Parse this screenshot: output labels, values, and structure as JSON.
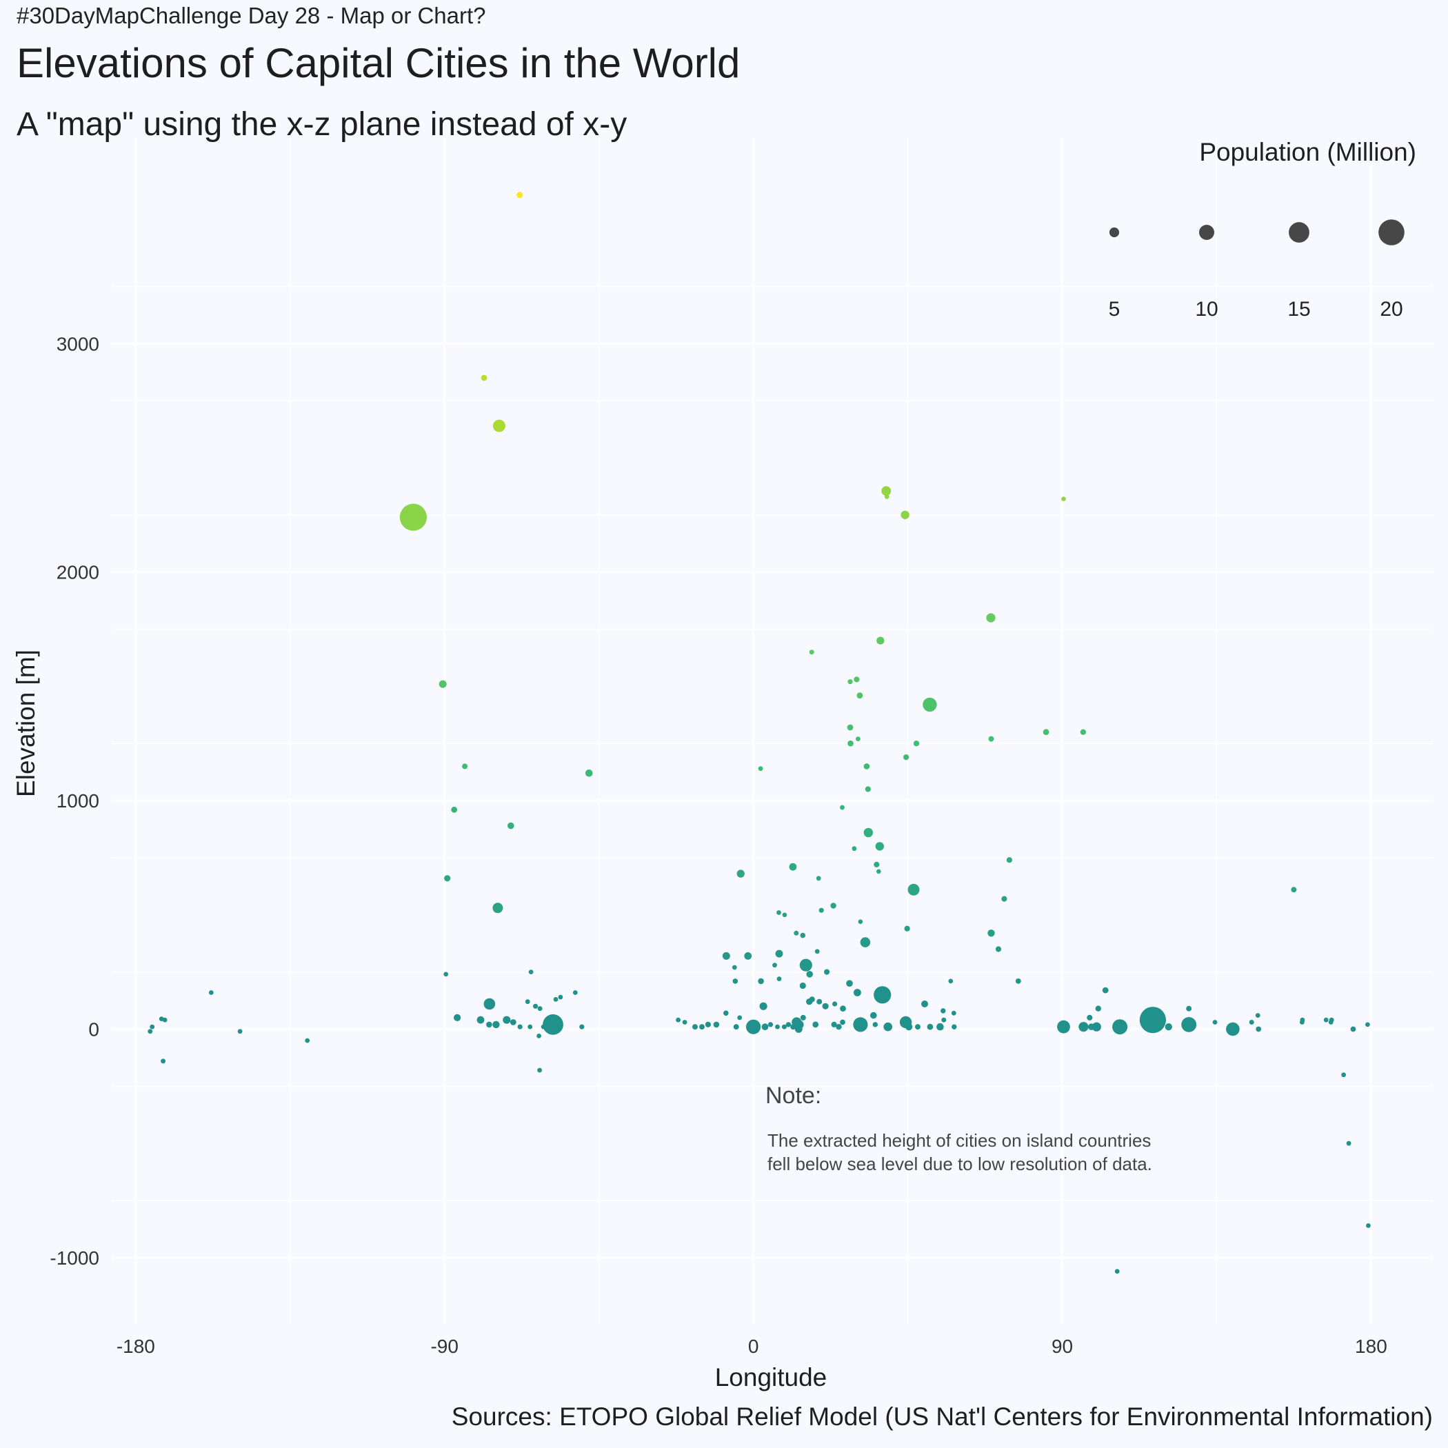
{
  "header": {
    "eyebrow": "#30DayMapChallenge Day 28 - Map or Chart?",
    "title": "Elevations of Capital Cities in the World",
    "subtitle": "A \"map\" using the x-z plane instead of x-y"
  },
  "caption": "Sources: ETOPO Global Relief Model (US Nat'l Centers for Environmental Information)",
  "note": {
    "title": "Note:",
    "lines": [
      "The extracted height of cities on island countries",
      "fell below sea level due to low resolution of data."
    ]
  },
  "chart_data": {
    "type": "scatter",
    "title": "Elevations of Capital Cities in the World",
    "xlabel": "Longitude",
    "ylabel": "Elevation [m]",
    "xlim": [
      -187,
      198
    ],
    "ylim": [
      -1290,
      3900
    ],
    "x_ticks": [
      -180,
      -90,
      0,
      90,
      180
    ],
    "x_tick_labels": [
      "-180",
      "-90",
      "0",
      "90",
      "180"
    ],
    "y_ticks": [
      -1000,
      0,
      1000,
      2000,
      3000
    ],
    "y_tick_labels": [
      "-1000",
      "0",
      "1000",
      "2000",
      "3000"
    ],
    "grid": true,
    "size_legend": {
      "title": "Population (Million)",
      "placement": "top-right",
      "breaks": [
        5,
        10,
        15,
        20
      ],
      "labels": [
        "5",
        "10",
        "15",
        "20"
      ],
      "color": "#474747"
    },
    "color_scale": "viridis (by elevation)",
    "points": [
      {
        "x": -68.1,
        "y": 3650,
        "pop": 1.8
      },
      {
        "x": -78.5,
        "y": 2850,
        "pop": 1.6
      },
      {
        "x": -74.1,
        "y": 2640,
        "pop": 7.4
      },
      {
        "x": -99.1,
        "y": 2240,
        "pop": 21.0
      },
      {
        "x": 90.4,
        "y": 2320,
        "pop": 0.1
      },
      {
        "x": 38.7,
        "y": 2355,
        "pop": 4.8
      },
      {
        "x": 38.9,
        "y": 2330,
        "pop": 0.3
      },
      {
        "x": 44.2,
        "y": 2250,
        "pop": 3.9
      },
      {
        "x": 69.2,
        "y": 1800,
        "pop": 4.3
      },
      {
        "x": 17.0,
        "y": 1650,
        "pop": 0.4
      },
      {
        "x": 37.0,
        "y": 1700,
        "pop": 3.1
      },
      {
        "x": 28.2,
        "y": 1520,
        "pop": 0.5
      },
      {
        "x": 30.1,
        "y": 1530,
        "pop": 1.2
      },
      {
        "x": 31.0,
        "y": 1460,
        "pop": 1.6
      },
      {
        "x": 51.4,
        "y": 1420,
        "pop": 9.0
      },
      {
        "x": -90.5,
        "y": 1510,
        "pop": 2.9
      },
      {
        "x": 28.2,
        "y": 1320,
        "pop": 1.5
      },
      {
        "x": 28.3,
        "y": 1250,
        "pop": 1.4
      },
      {
        "x": 30.5,
        "y": 1270,
        "pop": 0.2
      },
      {
        "x": 47.5,
        "y": 1250,
        "pop": 1.3
      },
      {
        "x": 44.5,
        "y": 1190,
        "pop": 1.1
      },
      {
        "x": 69.3,
        "y": 1270,
        "pop": 1.0
      },
      {
        "x": 85.3,
        "y": 1300,
        "pop": 1.5
      },
      {
        "x": 33.0,
        "y": 1150,
        "pop": 1.4
      },
      {
        "x": 96.1,
        "y": 1300,
        "pop": 1.3
      },
      {
        "x": -84.1,
        "y": 1150,
        "pop": 1.0
      },
      {
        "x": -47.9,
        "y": 1120,
        "pop": 2.7
      },
      {
        "x": 2.1,
        "y": 1140,
        "pop": 0.2
      },
      {
        "x": 33.4,
        "y": 1050,
        "pop": 1.1
      },
      {
        "x": -87.2,
        "y": 960,
        "pop": 1.5
      },
      {
        "x": -70.7,
        "y": 890,
        "pop": 2.0
      },
      {
        "x": 25.9,
        "y": 970,
        "pop": 0.3
      },
      {
        "x": 33.5,
        "y": 860,
        "pop": 4.5
      },
      {
        "x": 36.8,
        "y": 800,
        "pop": 3.9
      },
      {
        "x": 29.4,
        "y": 790,
        "pop": 0.3
      },
      {
        "x": 35.9,
        "y": 720,
        "pop": 1.1
      },
      {
        "x": 36.5,
        "y": 690,
        "pop": 0.1
      },
      {
        "x": 74.6,
        "y": 740,
        "pop": 1.2
      },
      {
        "x": -89.2,
        "y": 660,
        "pop": 1.8
      },
      {
        "x": -3.7,
        "y": 680,
        "pop": 3.2
      },
      {
        "x": 11.5,
        "y": 710,
        "pop": 2.8
      },
      {
        "x": 19.0,
        "y": 660,
        "pop": 0.2
      },
      {
        "x": 46.7,
        "y": 610,
        "pop": 6.8
      },
      {
        "x": 157.5,
        "y": 610,
        "pop": 1.0
      },
      {
        "x": 73.1,
        "y": 570,
        "pop": 1.2
      },
      {
        "x": -74.5,
        "y": 530,
        "pop": 5.5
      },
      {
        "x": 7.4,
        "y": 510,
        "pop": 0.3
      },
      {
        "x": 9.1,
        "y": 500,
        "pop": 0.1
      },
      {
        "x": 19.8,
        "y": 520,
        "pop": 0.5
      },
      {
        "x": 23.3,
        "y": 540,
        "pop": 1.3
      },
      {
        "x": 31.2,
        "y": 470,
        "pop": 0.1
      },
      {
        "x": 44.8,
        "y": 440,
        "pop": 1.1
      },
      {
        "x": 69.3,
        "y": 420,
        "pop": 2.6
      },
      {
        "x": 12.5,
        "y": 420,
        "pop": 0.4
      },
      {
        "x": 14.4,
        "y": 410,
        "pop": 0.8
      },
      {
        "x": 32.6,
        "y": 380,
        "pop": 5.3
      },
      {
        "x": 71.4,
        "y": 350,
        "pop": 1.2
      },
      {
        "x": -7.9,
        "y": 320,
        "pop": 3.0
      },
      {
        "x": -1.6,
        "y": 320,
        "pop": 2.8
      },
      {
        "x": 7.5,
        "y": 330,
        "pop": 3.0
      },
      {
        "x": 18.6,
        "y": 340,
        "pop": 0.2
      },
      {
        "x": 15.3,
        "y": 280,
        "pop": 7.6
      },
      {
        "x": 16.4,
        "y": 240,
        "pop": 2.0
      },
      {
        "x": 21.4,
        "y": 250,
        "pop": 1.2
      },
      {
        "x": 6.2,
        "y": 280,
        "pop": 0.2
      },
      {
        "x": -5.5,
        "y": 270,
        "pop": 0.2
      },
      {
        "x": 2.2,
        "y": 210,
        "pop": 1.4
      },
      {
        "x": -5.3,
        "y": 210,
        "pop": 0.8
      },
      {
        "x": 7.5,
        "y": 220,
        "pop": 0.2
      },
      {
        "x": 28.0,
        "y": 200,
        "pop": 2.0
      },
      {
        "x": 57.5,
        "y": 210,
        "pop": 0.3
      },
      {
        "x": 77.2,
        "y": 210,
        "pop": 0.9
      },
      {
        "x": -89.6,
        "y": 240,
        "pop": 0.3
      },
      {
        "x": -64.8,
        "y": 250,
        "pop": 0.2
      },
      {
        "x": 14.4,
        "y": 190,
        "pop": 1.8
      },
      {
        "x": 30.3,
        "y": 160,
        "pop": 2.8
      },
      {
        "x": 37.6,
        "y": 150,
        "pop": 12.0
      },
      {
        "x": 102.6,
        "y": 170,
        "pop": 1.6
      },
      {
        "x": -76.9,
        "y": 110,
        "pop": 6.5
      },
      {
        "x": -65.8,
        "y": 120,
        "pop": 0.2
      },
      {
        "x": -63.5,
        "y": 100,
        "pop": 0.5
      },
      {
        "x": -62.2,
        "y": 90,
        "pop": 0.4
      },
      {
        "x": -57.6,
        "y": 130,
        "pop": 0.2
      },
      {
        "x": -56.2,
        "y": 140,
        "pop": 0.3
      },
      {
        "x": -51.9,
        "y": 160,
        "pop": 0.2
      },
      {
        "x": -158.0,
        "y": 160,
        "pop": 0.3
      },
      {
        "x": 2.9,
        "y": 100,
        "pop": 3.1
      },
      {
        "x": 16.3,
        "y": 120,
        "pop": 1.9
      },
      {
        "x": 17.1,
        "y": 130,
        "pop": 1.1
      },
      {
        "x": 19.2,
        "y": 120,
        "pop": 1.0
      },
      {
        "x": 21.0,
        "y": 100,
        "pop": 1.8
      },
      {
        "x": 26.1,
        "y": 90,
        "pop": 1.5
      },
      {
        "x": 23.7,
        "y": 110,
        "pop": 0.5
      },
      {
        "x": 49.9,
        "y": 110,
        "pop": 2.3
      },
      {
        "x": 55.3,
        "y": 80,
        "pop": 0.6
      },
      {
        "x": 58.4,
        "y": 70,
        "pop": 0.3
      },
      {
        "x": 100.5,
        "y": 90,
        "pop": 1.3
      },
      {
        "x": 126.9,
        "y": 90,
        "pop": 1.0
      },
      {
        "x": -8.0,
        "y": 70,
        "pop": 0.8
      },
      {
        "x": -4.0,
        "y": 50,
        "pop": 0.2
      },
      {
        "x": -21.9,
        "y": 40,
        "pop": 0.3
      },
      {
        "x": -20.0,
        "y": 30,
        "pop": 0.2
      },
      {
        "x": -171.5,
        "y": 40,
        "pop": 0.2
      },
      {
        "x": -172.5,
        "y": 45,
        "pop": 0.2
      },
      {
        "x": -86.3,
        "y": 50,
        "pop": 2.4
      },
      {
        "x": -79.5,
        "y": 40,
        "pop": 2.8
      },
      {
        "x": -77.0,
        "y": 20,
        "pop": 1.4
      },
      {
        "x": -75.0,
        "y": 20,
        "pop": 2.5
      },
      {
        "x": -71.9,
        "y": 40,
        "pop": 3.1
      },
      {
        "x": -70.0,
        "y": 30,
        "pop": 1.5
      },
      {
        "x": -68.0,
        "y": 10,
        "pop": 0.5
      },
      {
        "x": -65.1,
        "y": 10,
        "pop": 0.3
      },
      {
        "x": -61.2,
        "y": 10,
        "pop": 0.2
      },
      {
        "x": -58.4,
        "y": 20,
        "pop": 15.0
      },
      {
        "x": -50.0,
        "y": 10,
        "pop": 0.5
      },
      {
        "x": -17.0,
        "y": 10,
        "pop": 1.0
      },
      {
        "x": -15.0,
        "y": 10,
        "pop": 1.0
      },
      {
        "x": -13.2,
        "y": 20,
        "pop": 1.1
      },
      {
        "x": -10.8,
        "y": 20,
        "pop": 1.4
      },
      {
        "x": -5.0,
        "y": 10,
        "pop": 1.0
      },
      {
        "x": -0.2,
        "y": 10,
        "pop": 2.5
      },
      {
        "x": 0.0,
        "y": 10,
        "pop": 9.5
      },
      {
        "x": 3.4,
        "y": 10,
        "pop": 2.2
      },
      {
        "x": 5.0,
        "y": 20,
        "pop": 0.5
      },
      {
        "x": 7.0,
        "y": 10,
        "pop": 0.3
      },
      {
        "x": 9.0,
        "y": 10,
        "pop": 0.4
      },
      {
        "x": 10.2,
        "y": 20,
        "pop": 0.6
      },
      {
        "x": 11.6,
        "y": 10,
        "pop": 1.2
      },
      {
        "x": 12.6,
        "y": 30,
        "pop": 5.0
      },
      {
        "x": 13.2,
        "y": 0,
        "pop": 2.8
      },
      {
        "x": 13.4,
        "y": 20,
        "pop": 4.0
      },
      {
        "x": 14.5,
        "y": 50,
        "pop": 1.0
      },
      {
        "x": 18.1,
        "y": 20,
        "pop": 1.6
      },
      {
        "x": 23.5,
        "y": 20,
        "pop": 1.1
      },
      {
        "x": 24.9,
        "y": 10,
        "pop": 1.3
      },
      {
        "x": 26.0,
        "y": 30,
        "pop": 0.9
      },
      {
        "x": 31.2,
        "y": 20,
        "pop": 9.5
      },
      {
        "x": 35.0,
        "y": 60,
        "pop": 2.0
      },
      {
        "x": 35.5,
        "y": 20,
        "pop": 0.6
      },
      {
        "x": 39.2,
        "y": 10,
        "pop": 4.0
      },
      {
        "x": 44.4,
        "y": 30,
        "pop": 7.0
      },
      {
        "x": 45.3,
        "y": 10,
        "pop": 2.6
      },
      {
        "x": 47.9,
        "y": 10,
        "pop": 1.0
      },
      {
        "x": 51.5,
        "y": 10,
        "pop": 1.6
      },
      {
        "x": 54.4,
        "y": 10,
        "pop": 2.7
      },
      {
        "x": 55.5,
        "y": 40,
        "pop": 0.4
      },
      {
        "x": 58.5,
        "y": 10,
        "pop": 0.6
      },
      {
        "x": 90.4,
        "y": 10,
        "pop": 8.0
      },
      {
        "x": 96.2,
        "y": 10,
        "pop": 5.0
      },
      {
        "x": 98.0,
        "y": 50,
        "pop": 1.2
      },
      {
        "x": 98.5,
        "y": 10,
        "pop": 2.0
      },
      {
        "x": 100.0,
        "y": 10,
        "pop": 4.3
      },
      {
        "x": 106.8,
        "y": 10,
        "pop": 10.0
      },
      {
        "x": 116.4,
        "y": 40,
        "pop": 20.4
      },
      {
        "x": 121.0,
        "y": 10,
        "pop": 2.6
      },
      {
        "x": 126.9,
        "y": 20,
        "pop": 9.9
      },
      {
        "x": 134.5,
        "y": 30,
        "pop": 0.2
      },
      {
        "x": 139.7,
        "y": 0,
        "pop": 8.5
      },
      {
        "x": 145.2,
        "y": 30,
        "pop": 0.4
      },
      {
        "x": 147.0,
        "y": 60,
        "pop": 0.2
      },
      {
        "x": 147.2,
        "y": 0,
        "pop": 0.9
      },
      {
        "x": 159.9,
        "y": 30,
        "pop": 0.2
      },
      {
        "x": 160.0,
        "y": 40,
        "pop": 0.2
      },
      {
        "x": 166.9,
        "y": 40,
        "pop": 0.3
      },
      {
        "x": 168.3,
        "y": 30,
        "pop": 0.2
      },
      {
        "x": 168.5,
        "y": 40,
        "pop": 0.2
      },
      {
        "x": 174.8,
        "y": 0,
        "pop": 0.9
      },
      {
        "x": 179.0,
        "y": 20,
        "pop": 0.2
      },
      {
        "x": -175.2,
        "y": 10,
        "pop": 0.2
      },
      {
        "x": -175.8,
        "y": -10,
        "pop": 0.3
      },
      {
        "x": -149.6,
        "y": -10,
        "pop": 0.3
      },
      {
        "x": -130.0,
        "y": -50,
        "pop": 0.2
      },
      {
        "x": -172.0,
        "y": -140,
        "pop": 0.4
      },
      {
        "x": -62.5,
        "y": -30,
        "pop": 0.2
      },
      {
        "x": -62.3,
        "y": -180,
        "pop": 0.2
      },
      {
        "x": 172.0,
        "y": -200,
        "pop": 0.3
      },
      {
        "x": 173.5,
        "y": -500,
        "pop": 0.3
      },
      {
        "x": 179.2,
        "y": -860,
        "pop": 0.2
      },
      {
        "x": 106.0,
        "y": -1060,
        "pop": 0.2
      }
    ]
  }
}
